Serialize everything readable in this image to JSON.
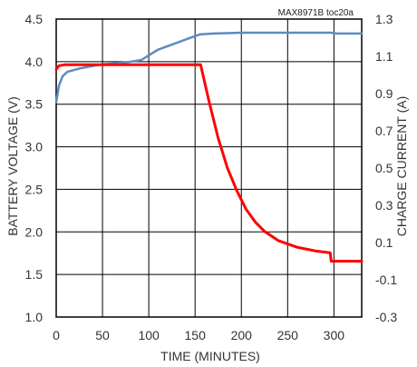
{
  "chart_data": {
    "type": "line",
    "annotation": "MAX8971B toc20a",
    "xlabel": "TIME (MINUTES)",
    "ylabel": "BATTERY VOLTAGE (V)",
    "y2label": "CHARGE CURRENT (A)",
    "xlim": [
      0,
      330
    ],
    "ylim": [
      1.0,
      4.5
    ],
    "y2lim": [
      -0.3,
      1.3
    ],
    "x_ticks": [
      "0",
      "50",
      "100",
      "150",
      "200",
      "250",
      "300"
    ],
    "y_ticks": [
      "1.0",
      "1.5",
      "2.0",
      "2.5",
      "3.0",
      "3.5",
      "4.0",
      "4.5"
    ],
    "y2_ticks": [
      "-0.3",
      "-0.1",
      "0.1",
      "0.3",
      "0.5",
      "0.7",
      "0.9",
      "1.1",
      "1.3"
    ],
    "grid": true,
    "series": [
      {
        "axis": "left",
        "color": "#5b8cc0",
        "points": [
          [
            0,
            3.52
          ],
          [
            3,
            3.72
          ],
          [
            7,
            3.83
          ],
          [
            12,
            3.88
          ],
          [
            25,
            3.92
          ],
          [
            50,
            3.97
          ],
          [
            75,
            3.99
          ],
          [
            92,
            4.02
          ],
          [
            98,
            4.06
          ],
          [
            110,
            4.14
          ],
          [
            130,
            4.22
          ],
          [
            145,
            4.28
          ],
          [
            155,
            4.32
          ],
          [
            170,
            4.33
          ],
          [
            200,
            4.34
          ],
          [
            250,
            4.34
          ],
          [
            297,
            4.34
          ],
          [
            303,
            4.33
          ],
          [
            330,
            4.33
          ]
        ]
      },
      {
        "axis": "right",
        "color": "#ff0000",
        "points": [
          [
            0,
            1.03
          ],
          [
            3,
            1.05
          ],
          [
            10,
            1.055
          ],
          [
            50,
            1.055
          ],
          [
            100,
            1.055
          ],
          [
            156,
            1.055
          ],
          [
            165,
            0.86
          ],
          [
            175,
            0.66
          ],
          [
            185,
            0.5
          ],
          [
            195,
            0.38
          ],
          [
            205,
            0.28
          ],
          [
            215,
            0.21
          ],
          [
            225,
            0.16
          ],
          [
            240,
            0.11
          ],
          [
            260,
            0.075
          ],
          [
            280,
            0.055
          ],
          [
            296,
            0.045
          ],
          [
            297,
            0.0
          ],
          [
            330,
            0.0
          ]
        ]
      }
    ]
  }
}
